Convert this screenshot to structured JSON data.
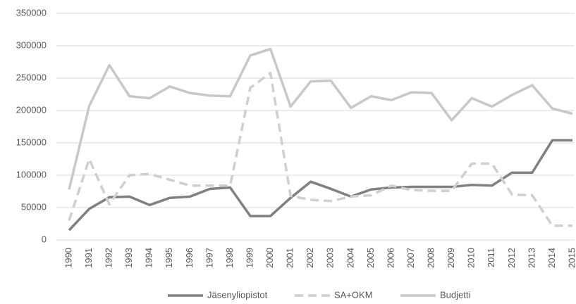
{
  "chart_data": {
    "type": "line",
    "categories": [
      "1990",
      "1991",
      "1992",
      "1993",
      "1994",
      "1995",
      "1996",
      "1997",
      "1998",
      "1999",
      "2000",
      "2001",
      "2002",
      "2003",
      "2004",
      "2005",
      "2006",
      "2007",
      "2008",
      "2009",
      "2010",
      "2011",
      "2012",
      "2013",
      "2014",
      "2015"
    ],
    "series": [
      {
        "name": "Jäsenyliopistot",
        "color": "#808080",
        "dashed": false,
        "values": [
          15000,
          48000,
          66000,
          67000,
          54000,
          65000,
          67000,
          79000,
          81000,
          37000,
          37000,
          65000,
          90000,
          79000,
          67000,
          78000,
          81000,
          82000,
          82000,
          82000,
          85000,
          84000,
          104000,
          104000,
          154000,
          154000
        ]
      },
      {
        "name": "SA+OKM",
        "color": "#cfcfcf",
        "dashed": true,
        "values": [
          30000,
          125000,
          55000,
          100000,
          102000,
          93000,
          84000,
          84000,
          84000,
          235000,
          258000,
          68000,
          62000,
          60000,
          67000,
          69000,
          84000,
          77000,
          76000,
          76000,
          118000,
          118000,
          70000,
          69000,
          22000,
          22000
        ]
      },
      {
        "name": "Budjetti",
        "color": "#c8c8c8",
        "dashed": false,
        "values": [
          78000,
          207000,
          270000,
          222000,
          219000,
          237000,
          227000,
          223000,
          222000,
          285000,
          295000,
          206000,
          245000,
          246000,
          204000,
          222000,
          216000,
          228000,
          227000,
          185000,
          219000,
          206000,
          224000,
          239000,
          203000,
          195000
        ]
      }
    ],
    "ylim": [
      0,
      350000
    ],
    "yticks": [
      0,
      50000,
      100000,
      150000,
      200000,
      250000,
      300000,
      350000
    ],
    "grid": true,
    "legend": "bottom"
  }
}
